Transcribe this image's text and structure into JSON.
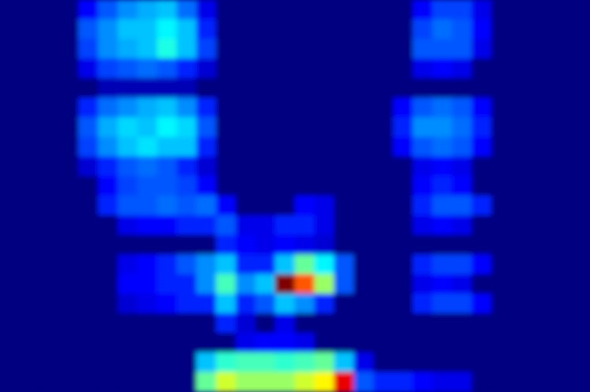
{
  "chart_data": {
    "type": "heatmap",
    "tick_labels": false,
    "cells": [
      [
        0,
        0,
        0,
        0,
        0.12,
        0.2,
        0.25,
        0.28,
        0.3,
        0.22,
        0.1,
        0,
        0,
        0,
        0,
        0,
        0,
        0,
        0,
        0,
        0,
        0.12,
        0.18,
        0.18,
        0.1,
        0,
        0,
        0,
        0,
        0
      ],
      [
        0,
        0,
        0,
        0,
        0.2,
        0.25,
        0.3,
        0.3,
        0.35,
        0.3,
        0.15,
        0,
        0,
        0,
        0,
        0,
        0,
        0,
        0,
        0,
        0,
        0.18,
        0.22,
        0.2,
        0.12,
        0,
        0,
        0,
        0,
        0
      ],
      [
        0,
        0,
        0,
        0,
        0.18,
        0.25,
        0.28,
        0.3,
        0.38,
        0.3,
        0.18,
        0,
        0,
        0,
        0,
        0,
        0,
        0,
        0,
        0,
        0,
        0.2,
        0.2,
        0.2,
        0.1,
        0,
        0,
        0,
        0,
        0
      ],
      [
        0,
        0,
        0,
        0,
        0.1,
        0.18,
        0.2,
        0.22,
        0.2,
        0.15,
        0.08,
        0,
        0,
        0,
        0,
        0,
        0,
        0,
        0,
        0,
        0,
        0.1,
        0.12,
        0.1,
        0,
        0,
        0,
        0,
        0,
        0
      ],
      [
        0,
        0,
        0,
        0,
        0,
        0.05,
        0.05,
        0.05,
        0.05,
        0.05,
        0,
        0,
        0,
        0,
        0,
        0,
        0,
        0,
        0,
        0,
        0,
        0,
        0,
        0,
        0,
        0,
        0,
        0,
        0,
        0
      ],
      [
        0,
        0,
        0,
        0,
        0.15,
        0.22,
        0.25,
        0.28,
        0.3,
        0.25,
        0.15,
        0,
        0,
        0,
        0,
        0,
        0,
        0,
        0,
        0,
        0.12,
        0.2,
        0.22,
        0.2,
        0.12,
        0,
        0,
        0,
        0,
        0
      ],
      [
        0,
        0,
        0,
        0,
        0.2,
        0.28,
        0.32,
        0.3,
        0.35,
        0.32,
        0.2,
        0,
        0,
        0,
        0,
        0,
        0,
        0,
        0,
        0,
        0.15,
        0.25,
        0.25,
        0.22,
        0.15,
        0,
        0,
        0,
        0,
        0
      ],
      [
        0,
        0,
        0,
        0,
        0.18,
        0.25,
        0.3,
        0.33,
        0.3,
        0.3,
        0.15,
        0,
        0,
        0,
        0,
        0,
        0,
        0,
        0,
        0,
        0.12,
        0.2,
        0.22,
        0.2,
        0.12,
        0,
        0,
        0,
        0,
        0
      ],
      [
        0,
        0,
        0,
        0,
        0.08,
        0.15,
        0.2,
        0.22,
        0.2,
        0.15,
        0.08,
        0,
        0,
        0,
        0,
        0,
        0,
        0,
        0,
        0,
        0,
        0.1,
        0.12,
        0.1,
        0,
        0,
        0,
        0,
        0,
        0
      ],
      [
        0,
        0,
        0,
        0,
        0,
        0.12,
        0.18,
        0.2,
        0.2,
        0.18,
        0.12,
        0,
        0,
        0,
        0,
        0,
        0,
        0,
        0,
        0,
        0,
        0.12,
        0.15,
        0.12,
        0,
        0,
        0,
        0,
        0,
        0
      ],
      [
        0,
        0,
        0,
        0,
        0,
        0.15,
        0.2,
        0.2,
        0.22,
        0.2,
        0.22,
        0.12,
        0,
        0,
        0,
        0.12,
        0.1,
        0,
        0,
        0,
        0,
        0.15,
        0.2,
        0.2,
        0.15,
        0,
        0,
        0,
        0,
        0
      ],
      [
        0,
        0,
        0,
        0,
        0,
        0,
        0.1,
        0.12,
        0.12,
        0.15,
        0.15,
        0.2,
        0.1,
        0.1,
        0.15,
        0.15,
        0.1,
        0,
        0,
        0,
        0,
        0.1,
        0.12,
        0.1,
        0,
        0,
        0,
        0,
        0,
        0
      ],
      [
        0,
        0,
        0,
        0,
        0,
        0,
        0,
        0,
        0,
        0,
        0,
        0.15,
        0.12,
        0.1,
        0.12,
        0.1,
        0.08,
        0,
        0,
        0,
        0,
        0,
        0,
        0,
        0,
        0,
        0,
        0,
        0,
        0
      ],
      [
        0,
        0,
        0,
        0,
        0,
        0,
        0.1,
        0.12,
        0.15,
        0.2,
        0.25,
        0.3,
        0.15,
        0.15,
        0.3,
        0.45,
        0.35,
        0.2,
        0,
        0,
        0,
        0.15,
        0.18,
        0.18,
        0.12,
        0,
        0,
        0,
        0,
        0
      ],
      [
        0,
        0,
        0,
        0,
        0,
        0,
        0.12,
        0.12,
        0.15,
        0.15,
        0.25,
        0.42,
        0.25,
        0.3,
        0.95,
        0.75,
        0.5,
        0.2,
        0,
        0,
        0,
        0.1,
        0.12,
        0.1,
        0,
        0,
        0,
        0,
        0,
        0
      ],
      [
        0,
        0,
        0,
        0,
        0,
        0,
        0.08,
        0.1,
        0.12,
        0.15,
        0.15,
        0.3,
        0.15,
        0.2,
        0.3,
        0.25,
        0.15,
        0,
        0,
        0,
        0,
        0.15,
        0.18,
        0.18,
        0.12,
        0,
        0,
        0,
        0,
        0
      ],
      [
        0,
        0,
        0,
        0,
        0,
        0,
        0,
        0,
        0,
        0,
        0,
        0.15,
        0.08,
        0,
        0.1,
        0,
        0,
        0,
        0,
        0,
        0,
        0,
        0,
        0,
        0,
        0,
        0,
        0,
        0,
        0
      ],
      [
        0,
        0,
        0,
        0,
        0,
        0,
        0,
        0,
        0,
        0,
        0,
        0,
        0.1,
        0.12,
        0.12,
        0.1,
        0,
        0,
        0,
        0,
        0,
        0,
        0,
        0,
        0,
        0,
        0,
        0,
        0,
        0
      ],
      [
        0,
        0,
        0,
        0,
        0,
        0,
        0,
        0,
        0,
        0,
        0.3,
        0.4,
        0.42,
        0.42,
        0.4,
        0.42,
        0.45,
        0.3,
        0.1,
        0,
        0,
        0,
        0,
        0,
        0,
        0,
        0,
        0,
        0,
        0
      ],
      [
        0,
        0,
        0,
        0,
        0,
        0,
        0,
        0,
        0,
        0,
        0.45,
        0.55,
        0.5,
        0.5,
        0.5,
        0.55,
        0.6,
        0.85,
        0.2,
        0.15,
        0.15,
        0.12,
        0.1,
        0.1,
        0,
        0,
        0,
        0,
        0,
        0
      ]
    ]
  }
}
